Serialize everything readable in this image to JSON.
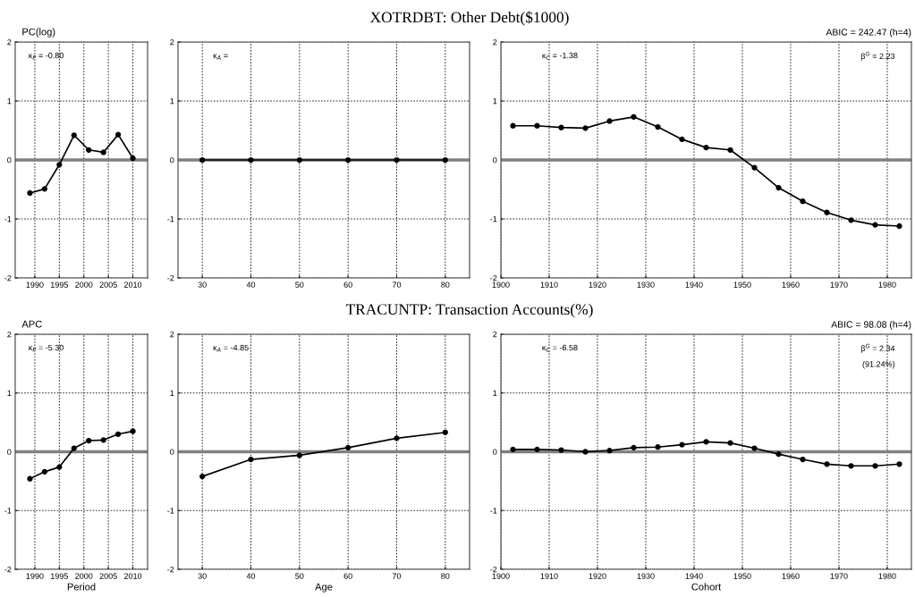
{
  "chart_data": [
    {
      "type": "line",
      "ylabel": "PC(log)",
      "annotations": [
        "κ$_{P}$ = -0.80"
      ],
      "x": [
        1989,
        1992,
        1995,
        1998,
        2001,
        2004,
        2007,
        2010
      ],
      "series": [
        {
          "color": "#000000",
          "values": [
            -0.56,
            -0.49,
            -0.08,
            0.42,
            0.17,
            0.13,
            0.43,
            0.03
          ]
        }
      ],
      "xlim": [
        1986,
        2013
      ],
      "xticks": [
        1990,
        1995,
        2000,
        2005,
        2010
      ],
      "ylim": [
        -2,
        2
      ],
      "yticks": [
        -2,
        -1,
        0,
        1,
        2
      ],
      "grid": true,
      "marker": "circle",
      "line_style": "solid",
      "ref_lines": [
        {
          "axis": "y",
          "value": 0,
          "color": "#808080"
        }
      ]
    },
    {
      "type": "line",
      "title": "XOTRDBT: Other Debt($1000)",
      "annotations": [
        "κ$_{A}$ ="
      ],
      "x": [
        30,
        40,
        50,
        60,
        70,
        80
      ],
      "series": [
        {
          "color": "#000000",
          "values": [
            0,
            0,
            0,
            0,
            0,
            0
          ]
        }
      ],
      "xlim": [
        25,
        85
      ],
      "xticks": [
        30,
        40,
        50,
        60,
        70,
        80
      ],
      "ylim": [
        -2,
        2
      ],
      "yticks": [
        -2,
        -1,
        0,
        1,
        2
      ],
      "grid": true,
      "marker": "circle",
      "line_style": "solid",
      "ref_lines": [
        {
          "axis": "y",
          "value": 0,
          "color": "#808080"
        }
      ]
    },
    {
      "type": "line",
      "subtitle": "ABIC = 242.47 (h=4)",
      "annotations": [
        "κ$_{C}$ = -1.38",
        "β$^{G}$ = 2.23"
      ],
      "x": [
        1902.5,
        1907.5,
        1912.5,
        1917.5,
        1922.5,
        1927.5,
        1932.5,
        1937.5,
        1942.5,
        1947.5,
        1952.5,
        1957.5,
        1962.5,
        1967.5,
        1972.5,
        1977.5,
        1982.5
      ],
      "series": [
        {
          "color": "#000000",
          "values": [
            0.58,
            0.58,
            0.55,
            0.54,
            0.66,
            0.73,
            0.56,
            0.35,
            0.21,
            0.17,
            -0.13,
            -0.47,
            -0.7,
            -0.89,
            -1.02,
            -1.1,
            -1.12
          ]
        }
      ],
      "xlim": [
        1900,
        1985
      ],
      "xticks": [
        1900,
        1910,
        1920,
        1930,
        1940,
        1950,
        1960,
        1970,
        1980
      ],
      "ylim": [
        -2,
        2
      ],
      "yticks": [
        -2,
        -1,
        0,
        1,
        2
      ],
      "grid": true,
      "marker": "circle",
      "line_style": "solid",
      "ref_lines": [
        {
          "axis": "y",
          "value": 0,
          "color": "#808080"
        }
      ]
    },
    {
      "type": "line",
      "ylabel": "APC",
      "xlabel": "Period",
      "annotations": [
        "κ$_{P}$ = -5.30"
      ],
      "x": [
        1989,
        1992,
        1995,
        1998,
        2001,
        2004,
        2007,
        2010
      ],
      "series": [
        {
          "color": "#000000",
          "values": [
            -0.46,
            -0.34,
            -0.26,
            0.06,
            0.19,
            0.2,
            0.3,
            0.35
          ]
        }
      ],
      "xlim": [
        1986,
        2013
      ],
      "xticks": [
        1990,
        1995,
        2000,
        2005,
        2010
      ],
      "ylim": [
        -2,
        2
      ],
      "yticks": [
        -2,
        -1,
        0,
        1,
        2
      ],
      "grid": true,
      "marker": "circle",
      "line_style": "solid",
      "ref_lines": [
        {
          "axis": "y",
          "value": 0,
          "color": "#808080"
        }
      ]
    },
    {
      "type": "line",
      "title": "TRACUNTP: Transaction Accounts(%)",
      "xlabel": "Age",
      "annotations": [
        "κ$_{A}$ = -4.85"
      ],
      "x": [
        30,
        40,
        50,
        60,
        70,
        80
      ],
      "series": [
        {
          "color": "#000000",
          "values": [
            -0.42,
            -0.13,
            -0.06,
            0.07,
            0.23,
            0.33
          ]
        }
      ],
      "xlim": [
        25,
        85
      ],
      "xticks": [
        30,
        40,
        50,
        60,
        70,
        80
      ],
      "ylim": [
        -2,
        2
      ],
      "yticks": [
        -2,
        -1,
        0,
        1,
        2
      ],
      "grid": true,
      "marker": "circle",
      "line_style": "solid",
      "ref_lines": [
        {
          "axis": "y",
          "value": 0,
          "color": "#808080"
        }
      ]
    },
    {
      "type": "line",
      "subtitle": "ABIC = 98.08 (h=4)",
      "xlabel": "Cohort",
      "annotations": [
        "κ$_{C}$ = -6.58",
        "β$^{G}$ = 2.34",
        "(91.24%)"
      ],
      "x": [
        1902.5,
        1907.5,
        1912.5,
        1917.5,
        1922.5,
        1927.5,
        1932.5,
        1937.5,
        1942.5,
        1947.5,
        1952.5,
        1957.5,
        1962.5,
        1967.5,
        1972.5,
        1977.5,
        1982.5
      ],
      "series": [
        {
          "color": "#000000",
          "values": [
            0.04,
            0.04,
            0.03,
            0.0,
            0.02,
            0.07,
            0.08,
            0.12,
            0.17,
            0.15,
            0.06,
            -0.04,
            -0.13,
            -0.21,
            -0.24,
            -0.24,
            -0.21
          ]
        }
      ],
      "xlim": [
        1900,
        1985
      ],
      "xticks": [
        1900,
        1910,
        1920,
        1930,
        1940,
        1950,
        1960,
        1970,
        1980
      ],
      "ylim": [
        -2,
        2
      ],
      "yticks": [
        -2,
        -1,
        0,
        1,
        2
      ],
      "grid": true,
      "marker": "circle",
      "line_style": "solid",
      "ref_lines": [
        {
          "axis": "y",
          "value": 0,
          "color": "#808080"
        }
      ]
    }
  ]
}
